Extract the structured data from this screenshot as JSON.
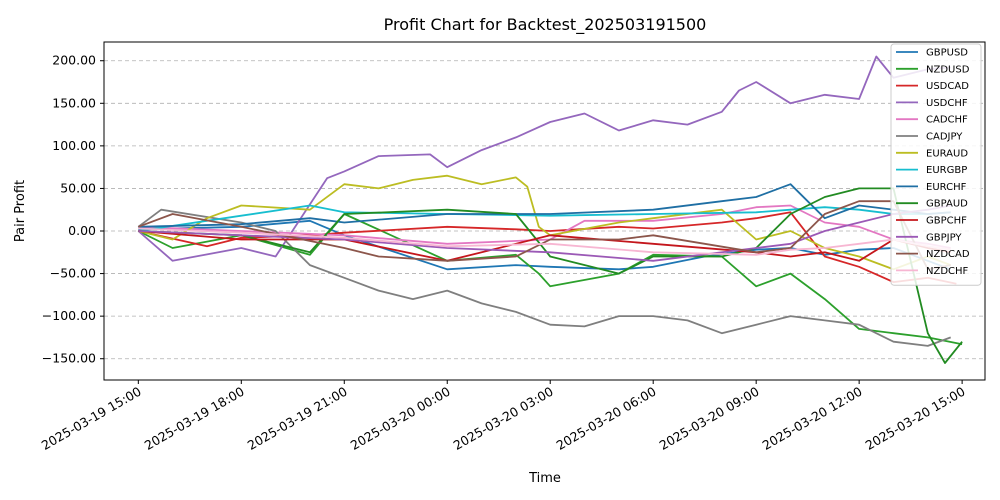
{
  "chart_data": {
    "type": "line",
    "title": "Profit Chart for Backtest_202503191500",
    "xlabel": "Time",
    "ylabel": "Pair Profit",
    "x_range": [
      "2025-03-19 14:00",
      "2025-03-20 15:40"
    ],
    "ylim": [
      -175,
      222
    ],
    "yticks": [
      -150,
      -100,
      -50,
      0,
      50,
      100,
      150,
      200
    ],
    "ytick_labels": [
      "−150.00",
      "−100.00",
      "−50.00",
      "0.00",
      "50.00",
      "100.00",
      "150.00",
      "200.00"
    ],
    "xticks": [
      "2025-03-19 15:00",
      "2025-03-19 18:00",
      "2025-03-19 21:00",
      "2025-03-20 00:00",
      "2025-03-20 03:00",
      "2025-03-20 06:00",
      "2025-03-20 09:00",
      "2025-03-20 12:00",
      "2025-03-20 15:00"
    ],
    "xtick_labels": [
      "2025-03-19 15:00",
      "2025-03-19 18:00",
      "2025-03-19 21:00",
      "2025-03-20 00:00",
      "2025-03-20 03:00",
      "2025-03-20 06:00",
      "2025-03-20 09:00",
      "2025-03-20 12:00",
      "2025-03-20 15:00"
    ],
    "grid": "horizontal-dashed",
    "legend_position": "top-right",
    "series": [
      {
        "name": "GBPUSD",
        "color": "#1f77b4",
        "x": [
          "2025-03-19 15:00",
          "2025-03-19 18:00",
          "2025-03-19 20:00",
          "2025-03-19 21:00",
          "2025-03-20 00:00",
          "2025-03-20 02:00",
          "2025-03-20 03:00",
          "2025-03-20 05:00",
          "2025-03-20 06:00",
          "2025-03-20 07:30",
          "2025-03-20 09:00",
          "2025-03-20 10:00",
          "2025-03-20 11:00",
          "2025-03-20 12:00",
          "2025-03-20 13:00",
          "2025-03-20 14:00",
          "2025-03-20 14:40"
        ],
        "y": [
          2,
          5,
          12,
          -5,
          -45,
          -40,
          -42,
          -45,
          -42,
          -30,
          -22,
          -20,
          -28,
          -22,
          -20,
          -35,
          -45
        ]
      },
      {
        "name": "NZDUSD",
        "color": "#2ca02c",
        "x": [
          "2025-03-19 15:00",
          "2025-03-19 16:00",
          "2025-03-19 18:00",
          "2025-03-19 20:00",
          "2025-03-19 21:00",
          "2025-03-20 00:00",
          "2025-03-20 02:00",
          "2025-03-20 02:40",
          "2025-03-20 03:00",
          "2025-03-20 05:00",
          "2025-03-20 06:00",
          "2025-03-20 08:00",
          "2025-03-20 09:00",
          "2025-03-20 10:00",
          "2025-03-20 11:00",
          "2025-03-20 12:00",
          "2025-03-20 13:00",
          "2025-03-20 14:00",
          "2025-03-20 15:00"
        ],
        "y": [
          0,
          -20,
          -5,
          -28,
          20,
          -35,
          -28,
          -50,
          -65,
          -50,
          -28,
          -30,
          -65,
          -50,
          -80,
          -115,
          -120,
          -125,
          -133
        ]
      },
      {
        "name": "USDCAD",
        "color": "#d62728",
        "x": [
          "2025-03-19 15:00",
          "2025-03-19 17:00",
          "2025-03-19 18:00",
          "2025-03-19 20:00",
          "2025-03-19 21:00",
          "2025-03-20 00:00",
          "2025-03-20 02:00",
          "2025-03-20 03:00",
          "2025-03-20 05:00",
          "2025-03-20 06:00",
          "2025-03-20 08:00",
          "2025-03-20 09:00",
          "2025-03-20 10:00",
          "2025-03-20 11:00",
          "2025-03-20 12:00",
          "2025-03-20 13:00",
          "2025-03-20 14:00",
          "2025-03-20 14:50"
        ],
        "y": [
          0,
          -18,
          -8,
          -5,
          -2,
          5,
          2,
          0,
          5,
          3,
          10,
          15,
          22,
          -30,
          -42,
          -60,
          -55,
          -62
        ]
      },
      {
        "name": "USDCHF",
        "color": "#9467bd",
        "x": [
          "2025-03-19 15:00",
          "2025-03-19 16:00",
          "2025-03-19 18:00",
          "2025-03-19 19:00",
          "2025-03-19 20:30",
          "2025-03-19 21:00",
          "2025-03-19 22:00",
          "2025-03-19 23:30",
          "2025-03-20 00:00",
          "2025-03-20 01:00",
          "2025-03-20 02:00",
          "2025-03-20 03:00",
          "2025-03-20 04:00",
          "2025-03-20 05:00",
          "2025-03-20 06:00",
          "2025-03-20 07:00",
          "2025-03-20 08:00",
          "2025-03-20 08:30",
          "2025-03-20 09:00",
          "2025-03-20 10:00",
          "2025-03-20 11:00",
          "2025-03-20 12:00",
          "2025-03-20 12:30",
          "2025-03-20 13:00",
          "2025-03-20 14:00",
          "2025-03-20 14:40"
        ],
        "y": [
          0,
          -35,
          -20,
          -30,
          62,
          70,
          88,
          90,
          75,
          95,
          110,
          128,
          138,
          118,
          130,
          125,
          140,
          165,
          175,
          150,
          160,
          155,
          205,
          180,
          190,
          192
        ]
      },
      {
        "name": "CADCHF",
        "color": "#e377c2",
        "x": [
          "2025-03-19 15:00",
          "2025-03-19 18:00",
          "2025-03-19 21:00",
          "2025-03-20 00:00",
          "2025-03-20 03:00",
          "2025-03-20 04:00",
          "2025-03-20 06:00",
          "2025-03-20 08:00",
          "2025-03-20 09:00",
          "2025-03-20 10:00",
          "2025-03-20 11:00",
          "2025-03-20 12:00",
          "2025-03-20 13:00",
          "2025-03-20 14:00",
          "2025-03-20 14:40"
        ],
        "y": [
          5,
          0,
          -5,
          -15,
          -10,
          12,
          12,
          20,
          28,
          30,
          10,
          5,
          -10,
          -15,
          -20
        ]
      },
      {
        "name": "CADJPY",
        "color": "#7f7f7f",
        "x": [
          "2025-03-19 15:00",
          "2025-03-19 15:40",
          "2025-03-19 18:00",
          "2025-03-19 19:00",
          "2025-03-19 20:00",
          "2025-03-19 21:00",
          "2025-03-19 22:00",
          "2025-03-19 23:00",
          "2025-03-20 00:00",
          "2025-03-20 01:00",
          "2025-03-20 02:00",
          "2025-03-20 03:00",
          "2025-03-20 04:00",
          "2025-03-20 05:00",
          "2025-03-20 06:00",
          "2025-03-20 07:00",
          "2025-03-20 08:00",
          "2025-03-20 09:00",
          "2025-03-20 10:00",
          "2025-03-20 11:00",
          "2025-03-20 12:00",
          "2025-03-20 13:00",
          "2025-03-20 14:00",
          "2025-03-20 14:40"
        ],
        "y": [
          5,
          25,
          10,
          0,
          -40,
          -55,
          -70,
          -80,
          -70,
          -85,
          -95,
          -110,
          -112,
          -100,
          -100,
          -105,
          -120,
          -110,
          -100,
          -105,
          -110,
          -130,
          -135,
          -125
        ]
      },
      {
        "name": "EURAUD",
        "color": "#bcbd22",
        "x": [
          "2025-03-19 15:00",
          "2025-03-19 16:00",
          "2025-03-19 17:00",
          "2025-03-19 18:00",
          "2025-03-19 20:00",
          "2025-03-19 21:00",
          "2025-03-19 22:00",
          "2025-03-19 23:00",
          "2025-03-20 00:00",
          "2025-03-20 01:00",
          "2025-03-20 02:00",
          "2025-03-20 02:20",
          "2025-03-20 02:40",
          "2025-03-20 03:00",
          "2025-03-20 05:00",
          "2025-03-20 06:00",
          "2025-03-20 08:00",
          "2025-03-20 09:00",
          "2025-03-20 10:00",
          "2025-03-20 11:00",
          "2025-03-20 12:00",
          "2025-03-20 13:00",
          "2025-03-20 14:00",
          "2025-03-20 14:40"
        ],
        "y": [
          0,
          -10,
          15,
          30,
          25,
          55,
          50,
          60,
          65,
          55,
          63,
          52,
          5,
          -5,
          10,
          15,
          25,
          -10,
          0,
          -20,
          -30,
          -45,
          -30,
          -40
        ]
      },
      {
        "name": "EURGBP",
        "color": "#17becf",
        "x": [
          "2025-03-19 15:00",
          "2025-03-19 18:00",
          "2025-03-19 20:00",
          "2025-03-19 21:00",
          "2025-03-20 00:00",
          "2025-03-20 03:00",
          "2025-03-20 06:00",
          "2025-03-20 09:00",
          "2025-03-20 10:00",
          "2025-03-20 11:00",
          "2025-03-20 12:00",
          "2025-03-20 13:00",
          "2025-03-20 14:00",
          "2025-03-20 14:40"
        ],
        "y": [
          0,
          18,
          30,
          22,
          20,
          18,
          20,
          22,
          25,
          28,
          25,
          20,
          20,
          22
        ]
      },
      {
        "name": "EURCHF",
        "color": "#1f6fa4",
        "x": [
          "2025-03-19 15:00",
          "2025-03-19 18:00",
          "2025-03-19 20:00",
          "2025-03-19 21:00",
          "2025-03-20 00:00",
          "2025-03-20 03:00",
          "2025-03-20 06:00",
          "2025-03-20 08:00",
          "2025-03-20 09:00",
          "2025-03-20 10:00",
          "2025-03-20 11:00",
          "2025-03-20 12:00",
          "2025-03-20 13:00",
          "2025-03-20 14:00",
          "2025-03-20 14:40"
        ],
        "y": [
          5,
          8,
          15,
          10,
          20,
          20,
          25,
          35,
          40,
          55,
          15,
          30,
          25,
          20,
          22
        ]
      },
      {
        "name": "GBPAUD",
        "color": "#228b22",
        "x": [
          "2025-03-19 15:00",
          "2025-03-19 18:00",
          "2025-03-19 20:00",
          "2025-03-19 21:00",
          "2025-03-20 00:00",
          "2025-03-20 02:00",
          "2025-03-20 03:00",
          "2025-03-20 05:00",
          "2025-03-20 06:00",
          "2025-03-20 08:00",
          "2025-03-20 09:00",
          "2025-03-20 10:00",
          "2025-03-20 11:00",
          "2025-03-20 12:00",
          "2025-03-20 13:00",
          "2025-03-20 14:00",
          "2025-03-20 14:30",
          "2025-03-20 15:00"
        ],
        "y": [
          0,
          -5,
          -25,
          20,
          25,
          20,
          -30,
          -50,
          -30,
          -30,
          -20,
          20,
          40,
          50,
          50,
          -120,
          -155,
          -130
        ]
      },
      {
        "name": "GBPCHF",
        "color": "#c4161c",
        "x": [
          "2025-03-19 15:00",
          "2025-03-19 18:00",
          "2025-03-19 21:00",
          "2025-03-20 00:00",
          "2025-03-20 03:00",
          "2025-03-20 06:00",
          "2025-03-20 09:00",
          "2025-03-20 10:00",
          "2025-03-20 11:00",
          "2025-03-20 12:00",
          "2025-03-20 13:00",
          "2025-03-20 14:00",
          "2025-03-20 14:40"
        ],
        "y": [
          0,
          -10,
          -10,
          -35,
          -5,
          -15,
          -25,
          -30,
          -25,
          -35,
          -10,
          -20,
          -25
        ]
      },
      {
        "name": "GBPJPY",
        "color": "#9b59b6",
        "x": [
          "2025-03-19 15:00",
          "2025-03-19 18:00",
          "2025-03-19 21:00",
          "2025-03-20 00:00",
          "2025-03-20 03:00",
          "2025-03-20 06:00",
          "2025-03-20 09:00",
          "2025-03-20 10:00",
          "2025-03-20 11:00",
          "2025-03-20 12:00",
          "2025-03-20 13:00",
          "2025-03-20 14:00",
          "2025-03-20 14:40"
        ],
        "y": [
          0,
          -5,
          -10,
          -20,
          -25,
          -35,
          -20,
          -15,
          0,
          10,
          20,
          25,
          30
        ]
      },
      {
        "name": "NZDCAD",
        "color": "#8c564b",
        "x": [
          "2025-03-19 15:00",
          "2025-03-19 16:00",
          "2025-03-19 18:00",
          "2025-03-19 21:00",
          "2025-03-19 22:00",
          "2025-03-20 00:00",
          "2025-03-20 02:00",
          "2025-03-20 03:00",
          "2025-03-20 05:00",
          "2025-03-20 06:00",
          "2025-03-20 09:00",
          "2025-03-20 10:00",
          "2025-03-20 11:00",
          "2025-03-20 12:00",
          "2025-03-20 13:00",
          "2025-03-20 14:00",
          "2025-03-20 14:40"
        ],
        "y": [
          5,
          20,
          5,
          -20,
          -30,
          -35,
          -30,
          -10,
          -10,
          -5,
          -25,
          -20,
          20,
          35,
          35,
          -45,
          -40
        ]
      },
      {
        "name": "NZDCHF",
        "color": "#f7b6d2",
        "x": [
          "2025-03-19 15:00",
          "2025-03-19 18:00",
          "2025-03-19 21:00",
          "2025-03-20 00:00",
          "2025-03-20 03:00",
          "2025-03-20 06:00",
          "2025-03-20 09:00",
          "2025-03-20 10:00",
          "2025-03-20 11:00",
          "2025-03-20 12:00",
          "2025-03-20 13:00",
          "2025-03-20 14:00",
          "2025-03-20 14:40"
        ],
        "y": [
          3,
          -2,
          -8,
          -18,
          -15,
          -25,
          -28,
          -22,
          -20,
          -15,
          -10,
          -18,
          -22
        ]
      }
    ]
  }
}
